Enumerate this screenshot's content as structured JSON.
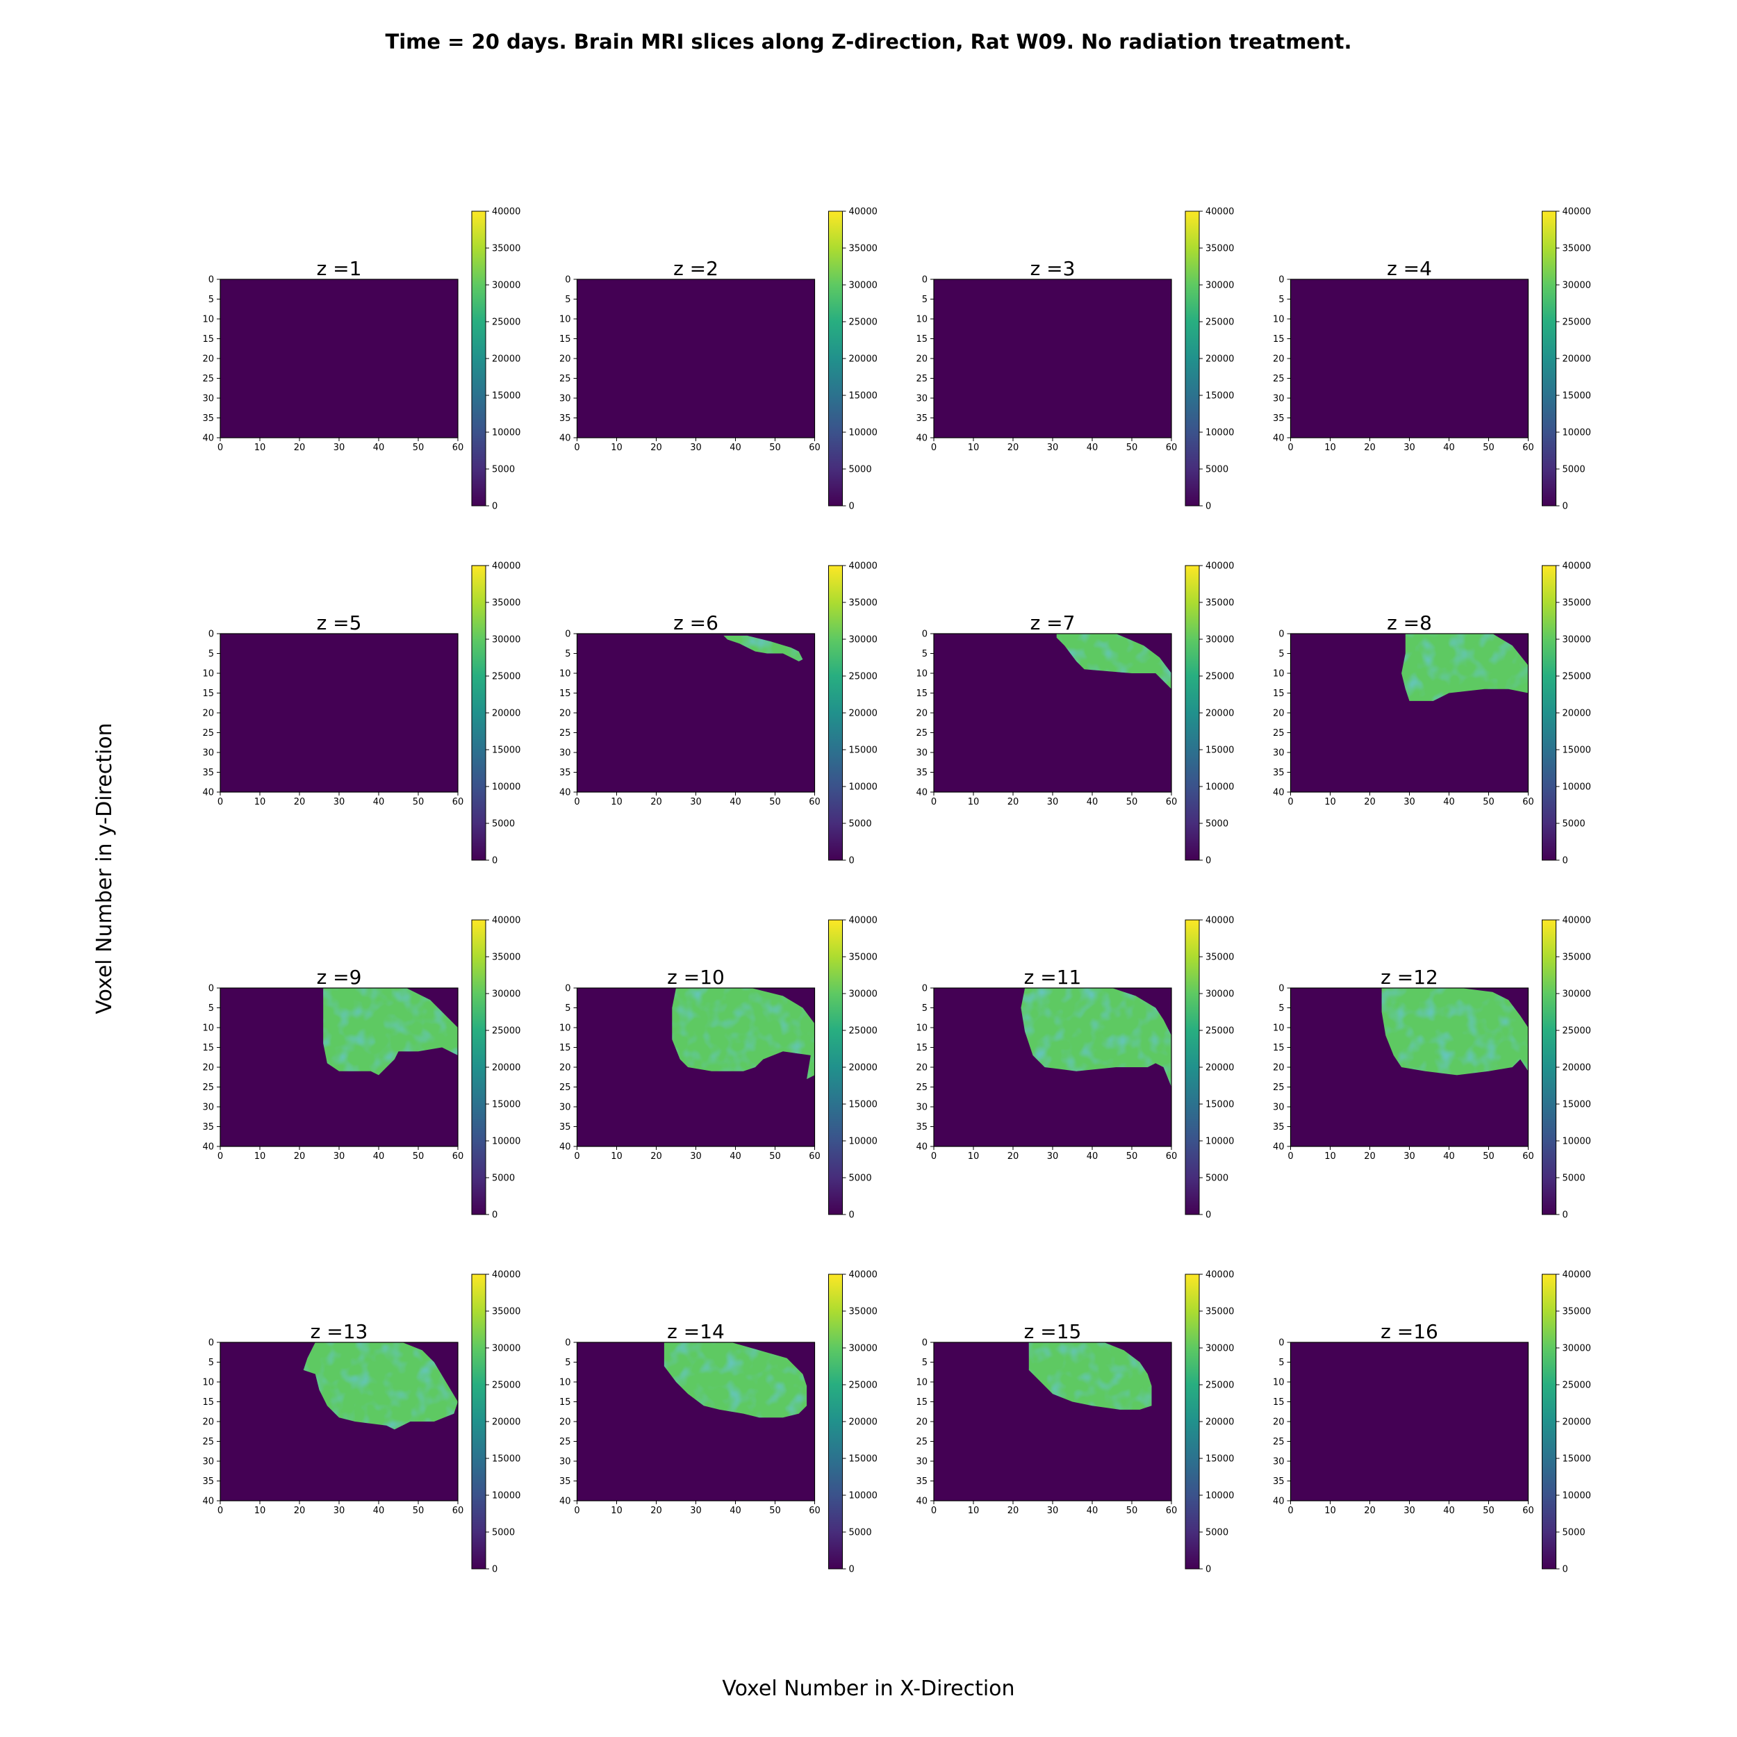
{
  "figure": {
    "title": "Time = 20 days. Brain MRI slices along Z-direction, Rat W09. No radiation treatment.",
    "xlabel": "Voxel Number in X-Direction",
    "ylabel": "Voxel Number in y-Direction"
  },
  "chart_data": {
    "type": "heatmap",
    "colormap": "viridis",
    "grid": false,
    "legend": "colorbar per panel",
    "colorbar": {
      "range": [
        0,
        40000
      ],
      "ticks": [
        0,
        5000,
        10000,
        15000,
        20000,
        25000,
        30000,
        35000,
        40000
      ]
    },
    "xlim": [
      0,
      60
    ],
    "ylim": [
      40,
      0
    ],
    "xticks": [
      0,
      10,
      20,
      30,
      40,
      50,
      60
    ],
    "yticks": [
      0,
      5,
      10,
      15,
      20,
      25,
      30,
      35,
      40
    ],
    "background_value": 0,
    "tissue_value_approx": 29000,
    "panels": [
      {
        "title": "z =1",
        "z": 1,
        "region": []
      },
      {
        "title": "z =2",
        "z": 2,
        "region": []
      },
      {
        "title": "z =3",
        "z": 3,
        "region": []
      },
      {
        "title": "z =4",
        "z": 4,
        "region": []
      },
      {
        "title": "z =5",
        "z": 5,
        "region": []
      },
      {
        "title": "z =6",
        "z": 6,
        "region": [
          [
            37,
            0.5
          ],
          [
            43,
            0.5
          ],
          [
            49,
            2
          ],
          [
            54,
            3.5
          ],
          [
            56,
            4.5
          ],
          [
            57,
            6.5
          ],
          [
            56,
            7
          ],
          [
            52,
            5
          ],
          [
            48,
            5
          ],
          [
            45,
            4.5
          ],
          [
            41,
            2.5
          ],
          [
            38,
            1.5
          ]
        ]
      },
      {
        "title": "z =7",
        "z": 7,
        "region": [
          [
            31,
            0
          ],
          [
            46,
            0
          ],
          [
            53,
            3
          ],
          [
            57,
            6
          ],
          [
            60,
            10
          ],
          [
            60,
            14
          ],
          [
            58,
            12
          ],
          [
            56,
            10
          ],
          [
            50,
            10
          ],
          [
            44,
            9.5
          ],
          [
            38,
            9
          ],
          [
            36,
            7
          ],
          [
            33,
            3
          ],
          [
            31,
            1
          ]
        ]
      },
      {
        "title": "z =8",
        "z": 8,
        "region": [
          [
            29,
            0
          ],
          [
            51,
            0
          ],
          [
            56,
            3
          ],
          [
            60,
            8
          ],
          [
            60,
            15
          ],
          [
            55,
            14
          ],
          [
            49,
            14
          ],
          [
            40,
            15
          ],
          [
            36,
            17
          ],
          [
            30,
            17
          ],
          [
            29,
            14
          ],
          [
            28,
            10
          ],
          [
            29,
            5
          ]
        ]
      },
      {
        "title": "z =9",
        "z": 9,
        "region": [
          [
            26,
            0
          ],
          [
            47,
            0
          ],
          [
            53,
            3
          ],
          [
            56,
            6
          ],
          [
            60,
            10
          ],
          [
            60,
            17
          ],
          [
            56,
            15
          ],
          [
            50,
            16
          ],
          [
            45,
            16
          ],
          [
            44,
            18
          ],
          [
            42,
            20
          ],
          [
            40,
            22
          ],
          [
            38,
            21
          ],
          [
            30,
            21
          ],
          [
            27,
            19
          ],
          [
            26,
            14
          ],
          [
            26,
            7
          ]
        ]
      },
      {
        "title": "z =10",
        "z": 10,
        "region": [
          [
            25,
            0
          ],
          [
            44,
            0
          ],
          [
            52,
            2
          ],
          [
            57,
            5
          ],
          [
            60,
            9
          ],
          [
            60,
            22
          ],
          [
            58,
            23
          ],
          [
            59,
            17
          ],
          [
            52,
            16
          ],
          [
            47,
            18
          ],
          [
            45,
            20
          ],
          [
            42,
            21
          ],
          [
            34,
            21
          ],
          [
            28,
            20
          ],
          [
            26,
            18
          ],
          [
            24,
            13
          ],
          [
            24,
            5
          ]
        ]
      },
      {
        "title": "z =11",
        "z": 11,
        "region": [
          [
            23,
            0
          ],
          [
            45,
            0
          ],
          [
            51,
            2
          ],
          [
            56,
            5
          ],
          [
            58,
            8
          ],
          [
            60,
            12
          ],
          [
            60,
            25
          ],
          [
            58,
            20
          ],
          [
            56,
            19
          ],
          [
            54,
            20
          ],
          [
            46,
            20
          ],
          [
            36,
            21
          ],
          [
            28,
            20
          ],
          [
            25,
            17
          ],
          [
            23,
            11
          ],
          [
            22,
            5
          ]
        ]
      },
      {
        "title": "z =12",
        "z": 12,
        "region": [
          [
            23,
            0
          ],
          [
            43,
            0
          ],
          [
            51,
            1
          ],
          [
            55,
            3
          ],
          [
            58,
            7
          ],
          [
            60,
            10
          ],
          [
            60,
            21
          ],
          [
            58,
            18
          ],
          [
            56,
            20
          ],
          [
            50,
            21
          ],
          [
            42,
            22
          ],
          [
            34,
            21
          ],
          [
            28,
            20
          ],
          [
            26,
            17
          ],
          [
            24,
            12
          ],
          [
            23,
            6
          ]
        ]
      },
      {
        "title": "z =13",
        "z": 13,
        "region": [
          [
            24,
            0
          ],
          [
            46,
            0
          ],
          [
            51,
            2
          ],
          [
            54,
            5
          ],
          [
            57,
            10
          ],
          [
            60,
            15
          ],
          [
            59,
            18
          ],
          [
            54,
            20
          ],
          [
            48,
            20
          ],
          [
            44,
            22
          ],
          [
            42,
            21
          ],
          [
            34,
            20
          ],
          [
            30,
            19
          ],
          [
            27,
            16
          ],
          [
            25,
            12
          ],
          [
            24,
            8
          ],
          [
            21,
            7
          ],
          [
            22,
            4
          ]
        ]
      },
      {
        "title": "z =14",
        "z": 14,
        "region": [
          [
            22,
            0
          ],
          [
            39,
            0
          ],
          [
            46,
            2
          ],
          [
            53,
            4
          ],
          [
            57,
            8
          ],
          [
            58,
            11
          ],
          [
            58,
            16
          ],
          [
            56,
            18
          ],
          [
            52,
            19
          ],
          [
            46,
            19
          ],
          [
            42,
            18
          ],
          [
            36,
            17
          ],
          [
            32,
            16
          ],
          [
            28,
            13
          ],
          [
            25,
            10
          ],
          [
            22,
            6
          ]
        ]
      },
      {
        "title": "z =15",
        "z": 15,
        "region": [
          [
            24,
            0
          ],
          [
            43,
            0
          ],
          [
            48,
            2
          ],
          [
            52,
            5
          ],
          [
            54,
            8
          ],
          [
            55,
            11
          ],
          [
            55,
            16
          ],
          [
            52,
            17
          ],
          [
            47,
            17
          ],
          [
            40,
            16
          ],
          [
            35,
            15
          ],
          [
            30,
            13
          ],
          [
            27,
            10
          ],
          [
            24,
            7
          ]
        ]
      },
      {
        "title": "z =16",
        "z": 16,
        "region": []
      }
    ]
  }
}
